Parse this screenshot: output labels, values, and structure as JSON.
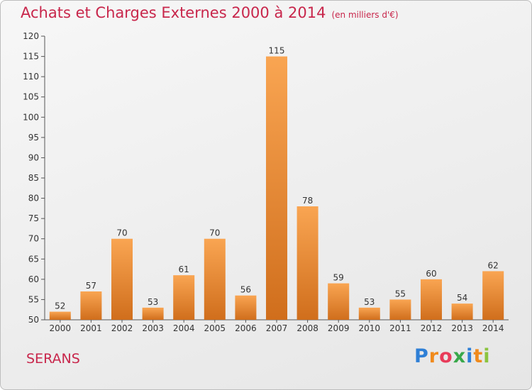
{
  "header": {
    "title": "Achats et Charges Externes 2000 à 2014",
    "unit_note": "(en milliers d'€)"
  },
  "footer": {
    "commune": "SERANS",
    "logo_text": "Proxiti"
  },
  "colors": {
    "title": "#c8264b",
    "bar_light": "#f9a552",
    "bar_dark": "#d06e1c",
    "axis": "#555555"
  },
  "chart_data": {
    "type": "bar",
    "categories": [
      "2000",
      "2001",
      "2002",
      "2003",
      "2004",
      "2005",
      "2006",
      "2007",
      "2008",
      "2009",
      "2010",
      "2011",
      "2012",
      "2013",
      "2014"
    ],
    "values": [
      52,
      57,
      70,
      53,
      61,
      70,
      56,
      115,
      78,
      59,
      53,
      55,
      60,
      54,
      62
    ],
    "title": "Achats et Charges Externes 2000 à 2014",
    "xlabel": "",
    "ylabel": "",
    "ylim": [
      50,
      120
    ],
    "yticks": [
      50,
      55,
      60,
      65,
      70,
      75,
      80,
      85,
      90,
      95,
      100,
      105,
      110,
      115,
      120
    ],
    "grid": false,
    "legend": "none"
  }
}
